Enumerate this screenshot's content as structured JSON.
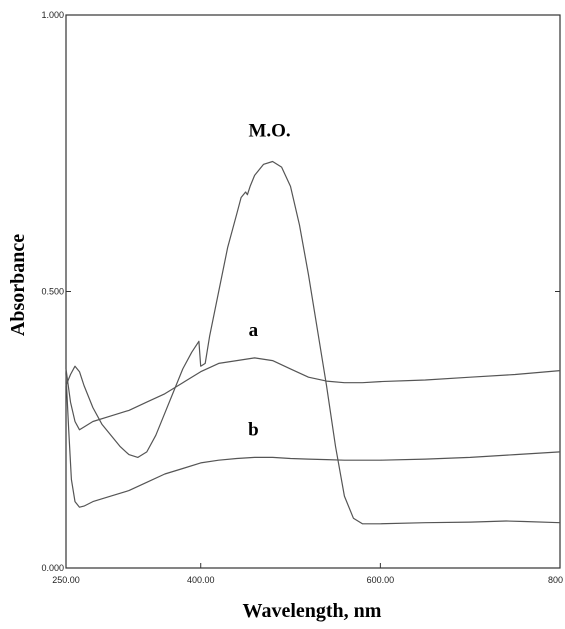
{
  "chart_data": {
    "type": "line",
    "xlabel": "Wavelength, nm",
    "ylabel": "Absorbance",
    "xlim": [
      250,
      800
    ],
    "ylim": [
      0,
      1
    ],
    "x_ticks": [
      "250.00",
      "400.00",
      "600.00",
      "800"
    ],
    "y_ticks": [
      "0.000",
      "0.500",
      "1.000"
    ],
    "grid": false,
    "series": [
      {
        "name": "M.O.",
        "color": "#555555",
        "points": [
          [
            250,
            0.33
          ],
          [
            255,
            0.35
          ],
          [
            260,
            0.365
          ],
          [
            265,
            0.355
          ],
          [
            270,
            0.33
          ],
          [
            280,
            0.29
          ],
          [
            290,
            0.26
          ],
          [
            300,
            0.24
          ],
          [
            310,
            0.22
          ],
          [
            320,
            0.205
          ],
          [
            330,
            0.2
          ],
          [
            340,
            0.21
          ],
          [
            350,
            0.24
          ],
          [
            360,
            0.28
          ],
          [
            370,
            0.32
          ],
          [
            380,
            0.36
          ],
          [
            390,
            0.39
          ],
          [
            398,
            0.41
          ],
          [
            400,
            0.365
          ],
          [
            405,
            0.37
          ],
          [
            410,
            0.42
          ],
          [
            420,
            0.5
          ],
          [
            430,
            0.58
          ],
          [
            440,
            0.64
          ],
          [
            445,
            0.67
          ],
          [
            450,
            0.68
          ],
          [
            452,
            0.675
          ],
          [
            455,
            0.69
          ],
          [
            460,
            0.71
          ],
          [
            470,
            0.73
          ],
          [
            480,
            0.735
          ],
          [
            490,
            0.725
          ],
          [
            500,
            0.69
          ],
          [
            510,
            0.62
          ],
          [
            520,
            0.53
          ],
          [
            530,
            0.43
          ],
          [
            540,
            0.33
          ],
          [
            550,
            0.22
          ],
          [
            560,
            0.13
          ],
          [
            570,
            0.09
          ],
          [
            580,
            0.08
          ],
          [
            600,
            0.08
          ],
          [
            650,
            0.082
          ],
          [
            700,
            0.083
          ],
          [
            740,
            0.085
          ],
          [
            760,
            0.084
          ],
          [
            800,
            0.082
          ]
        ]
      },
      {
        "name": "a",
        "color": "#555555",
        "points": [
          [
            250,
            0.36
          ],
          [
            255,
            0.3
          ],
          [
            260,
            0.265
          ],
          [
            265,
            0.25
          ],
          [
            270,
            0.255
          ],
          [
            280,
            0.265
          ],
          [
            300,
            0.275
          ],
          [
            320,
            0.285
          ],
          [
            340,
            0.3
          ],
          [
            360,
            0.315
          ],
          [
            380,
            0.335
          ],
          [
            400,
            0.355
          ],
          [
            420,
            0.37
          ],
          [
            440,
            0.375
          ],
          [
            460,
            0.38
          ],
          [
            480,
            0.375
          ],
          [
            500,
            0.36
          ],
          [
            520,
            0.345
          ],
          [
            540,
            0.338
          ],
          [
            560,
            0.335
          ],
          [
            580,
            0.335
          ],
          [
            600,
            0.337
          ],
          [
            650,
            0.34
          ],
          [
            700,
            0.345
          ],
          [
            750,
            0.35
          ],
          [
            800,
            0.357
          ]
        ]
      },
      {
        "name": "b",
        "color": "#555555",
        "points": [
          [
            250,
            0.35
          ],
          [
            253,
            0.25
          ],
          [
            256,
            0.16
          ],
          [
            260,
            0.12
          ],
          [
            265,
            0.11
          ],
          [
            270,
            0.112
          ],
          [
            280,
            0.12
          ],
          [
            300,
            0.13
          ],
          [
            320,
            0.14
          ],
          [
            340,
            0.155
          ],
          [
            360,
            0.17
          ],
          [
            380,
            0.18
          ],
          [
            400,
            0.19
          ],
          [
            420,
            0.195
          ],
          [
            440,
            0.198
          ],
          [
            460,
            0.2
          ],
          [
            480,
            0.2
          ],
          [
            500,
            0.198
          ],
          [
            520,
            0.197
          ],
          [
            540,
            0.196
          ],
          [
            560,
            0.195
          ],
          [
            580,
            0.195
          ],
          [
            600,
            0.195
          ],
          [
            650,
            0.197
          ],
          [
            700,
            0.2
          ],
          [
            750,
            0.205
          ],
          [
            800,
            0.21
          ]
        ]
      }
    ]
  }
}
